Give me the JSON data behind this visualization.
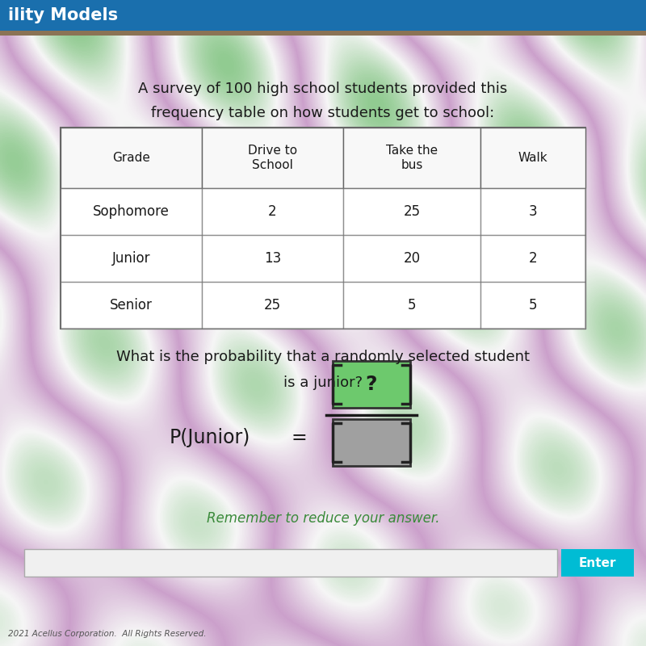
{
  "header_bar_color": "#1a6fad",
  "header_bar_text": "ility Models",
  "header_bar_text_color": "#ffffff",
  "bg_color": "#c8c8c8",
  "title_line1": "A survey of 100 high school students provided this",
  "title_line2": "frequency table on how students get to school:",
  "title_color": "#1a1a1a",
  "table_headers": [
    "Grade",
    "Drive to\nSchool",
    "Take the\nbus",
    "Walk"
  ],
  "table_rows": [
    [
      "Sophomore",
      "2",
      "25",
      "3"
    ],
    [
      "Junior",
      "13",
      "20",
      "2"
    ],
    [
      "Senior",
      "25",
      "5",
      "5"
    ]
  ],
  "question_line1": "What is the probability that a randomly selected student",
  "question_line2": "is a junior?",
  "question_color": "#1a1a1a",
  "numerator_box_color": "#6dc96d",
  "denominator_box_color": "#a0a0a0",
  "remember_text": "Remember to reduce your answer.",
  "remember_color": "#3a8a3a",
  "enter_button_color": "#00bcd4",
  "enter_text": "Enter",
  "enter_text_color": "#ffffff",
  "footer_text": "2021 Acellus Corporation.  All Rights Reserved.",
  "footer_color": "#555555",
  "swirl_color1": "#90c890",
  "swirl_color2": "#c0a0d0",
  "swirl_color3": "#f0f0f0"
}
